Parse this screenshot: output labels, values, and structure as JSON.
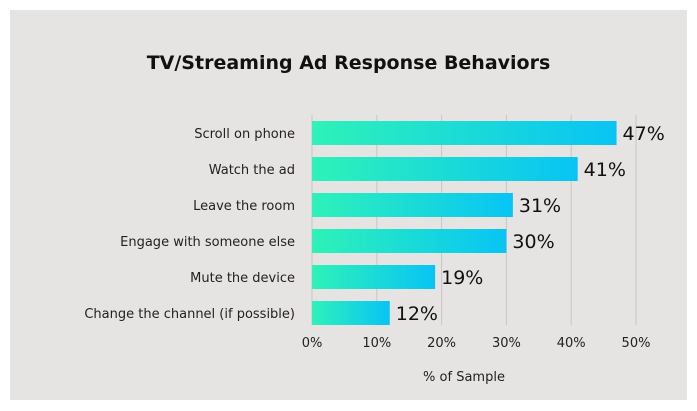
{
  "chart_data": {
    "type": "bar",
    "orientation": "horizontal",
    "title": "TV/Streaming Ad Response Behaviors",
    "xlabel": "% of Sample",
    "ylabel": "",
    "categories": [
      "Scroll on phone",
      "Watch the ad",
      "Leave the room",
      "Engage with someone else",
      "Mute the device",
      "Change the channel (if possible)"
    ],
    "values": [
      47,
      41,
      31,
      30,
      19,
      12
    ],
    "value_labels": [
      "47%",
      "41%",
      "31%",
      "30%",
      "19%",
      "12%"
    ],
    "xlim": [
      0,
      50
    ],
    "ticks": [
      "0%",
      "10%",
      "20%",
      "30%",
      "40%",
      "50%"
    ],
    "grid": true,
    "colors": {
      "bar_start": "#2ef2b8",
      "bar_end": "#08c4f5",
      "grid": "#c8c6c4",
      "background": "#e6e4e2"
    }
  }
}
